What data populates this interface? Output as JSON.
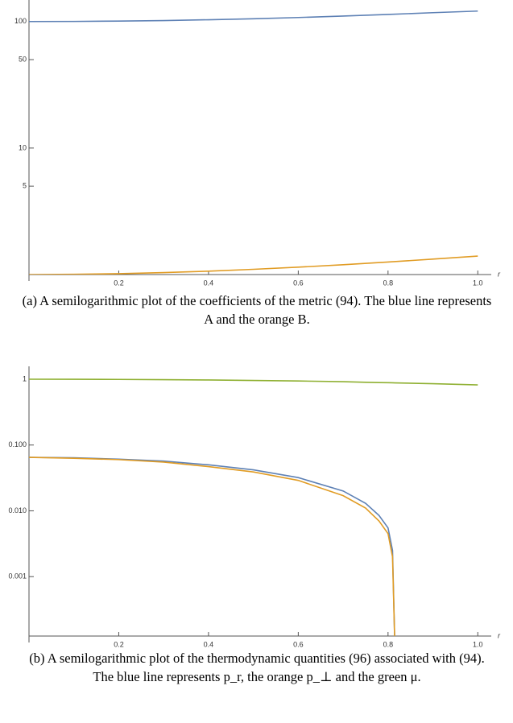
{
  "chart_data": [
    {
      "type": "line",
      "log_y": true,
      "xlabel": "r",
      "x": [
        0,
        0.1,
        0.2,
        0.3,
        0.4,
        0.5,
        0.6,
        0.7,
        0.8,
        0.9,
        1.0
      ],
      "series": [
        {
          "name": "A",
          "color": "#5e81b5",
          "values": [
            100,
            100.2,
            100.8,
            101.8,
            103.3,
            105.2,
            107.6,
            110.5,
            113.8,
            117.5,
            121
          ]
        },
        {
          "name": "B",
          "color": "#e19c24",
          "values": [
            1,
            1.004,
            1.016,
            1.036,
            1.064,
            1.1,
            1.144,
            1.196,
            1.256,
            1.324,
            1.4
          ]
        }
      ],
      "xlim": [
        0,
        1.03
      ],
      "xticks": [
        0.2,
        0.4,
        0.6,
        0.8,
        {
          "value": 1,
          "label": "1.0"
        }
      ],
      "ylim": [
        1,
        148
      ],
      "yticks": [
        5,
        10,
        50,
        100
      ],
      "caption": "(a) A semilogarithmic plot of the coefficients of the metric (94). The blue line represents A and the orange B."
    },
    {
      "type": "line",
      "log_y": true,
      "xlabel": "r",
      "x": [
        0,
        0.1,
        0.2,
        0.3,
        0.4,
        0.5,
        0.6,
        0.7,
        0.75,
        0.78,
        0.8,
        0.81,
        0.815,
        0.9,
        1.0
      ],
      "series": [
        {
          "name": "p_r",
          "color": "#5e81b5",
          "values": [
            0.065,
            0.064,
            0.061,
            0.057,
            0.05,
            0.042,
            0.032,
            0.02,
            0.013,
            0.0085,
            0.0055,
            0.0025,
            0.0001,
            null,
            null
          ]
        },
        {
          "name": "p_⊥",
          "color": "#e19c24",
          "values": [
            0.065,
            0.063,
            0.06,
            0.055,
            0.047,
            0.039,
            0.029,
            0.017,
            0.011,
            0.007,
            0.0045,
            0.002,
            0.0001,
            null,
            null
          ]
        },
        {
          "name": "μ",
          "color": "#8fb032",
          "values": [
            1,
            0.998,
            0.993,
            0.985,
            0.973,
            0.958,
            0.94,
            0.918,
            0.899,
            0.89,
            0.885,
            0.882,
            0.88,
            0.854,
            0.82
          ]
        }
      ],
      "xlim": [
        0,
        1.03
      ],
      "xticks": [
        0.2,
        0.4,
        0.6,
        0.8,
        {
          "value": 1,
          "label": "1.0"
        }
      ],
      "ylim": [
        0.000125,
        1.57
      ],
      "yticks": [
        {
          "value": 0.001,
          "label": "0.001"
        },
        {
          "value": 0.01,
          "label": "0.010"
        },
        {
          "value": 0.1,
          "label": "0.100"
        },
        1
      ],
      "caption": "(b) A semilogarithmic plot of the thermodynamic quantities (96) associated with (94). The blue line represents p_r, the orange p_⊥ and the green μ."
    }
  ]
}
